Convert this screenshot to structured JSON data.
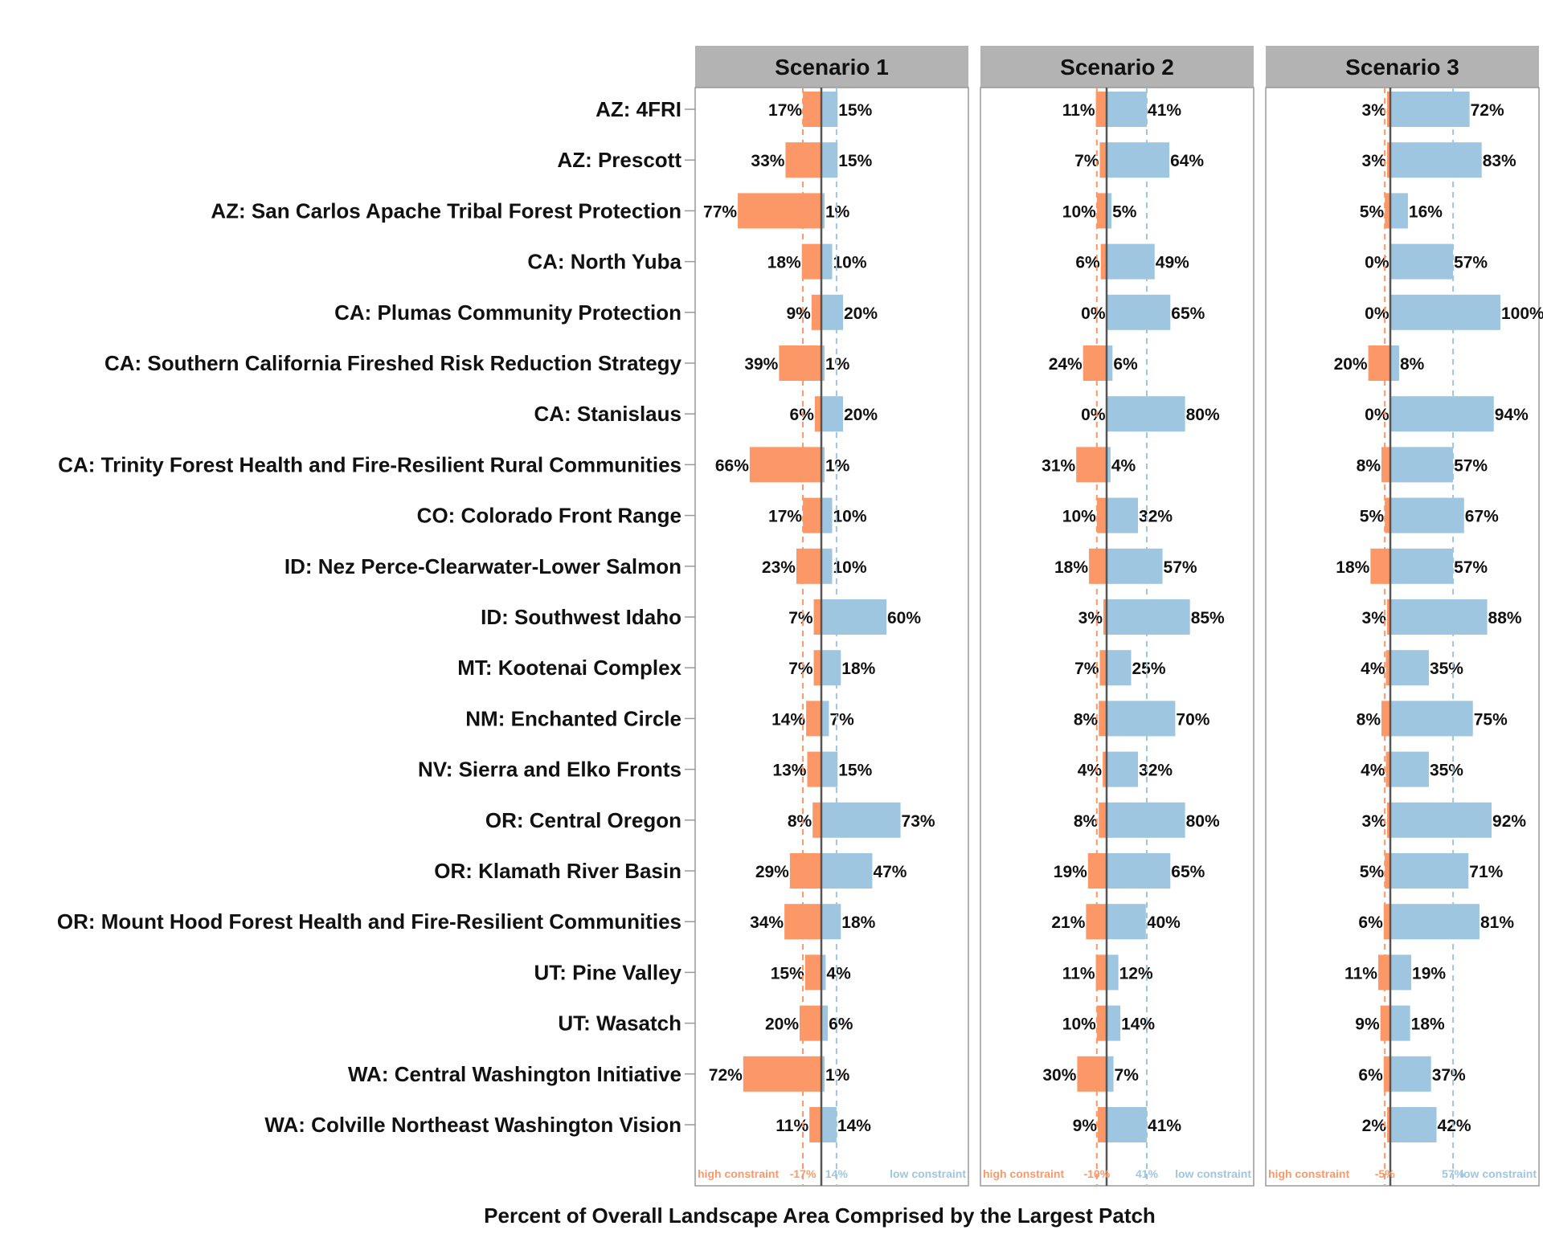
{
  "chart_data": {
    "type": "bar",
    "xlabel": "Percent of Overall Landscape Area Comprised by the Largest Patch",
    "colors": {
      "high": "#fc9867",
      "low": "#9fc6e1",
      "axis": "#555555",
      "panel_border": "#999999",
      "strip": "#b3b3b3"
    },
    "categories": [
      "AZ: 4FRI",
      "AZ: Prescott",
      "AZ: San Carlos Apache Tribal Forest Protection",
      "CA: North Yuba",
      "CA: Plumas Community Protection",
      "CA: Southern California Fireshed Risk Reduction Strategy",
      "CA: Stanislaus",
      "CA: Trinity Forest Health and Fire-Resilient Rural Communities",
      "CO: Colorado Front Range",
      "ID: Nez Perce-Clearwater-Lower Salmon",
      "ID: Southwest Idaho",
      "MT: Kootenai Complex",
      "NM: Enchanted Circle",
      "NV: Sierra and Elko Fronts",
      "OR: Central Oregon",
      "OR: Klamath River Basin",
      "OR: Mount Hood Forest Health and Fire-Resilient Communities",
      "UT: Pine Valley",
      "UT: Wasatch",
      "WA: Central Washington Initiative",
      "WA: Colville Northeast Washington Vision"
    ],
    "panels": [
      {
        "title": "Scenario 1",
        "high_constraint": [
          17,
          33,
          77,
          18,
          9,
          39,
          6,
          66,
          17,
          23,
          7,
          7,
          14,
          13,
          8,
          29,
          34,
          15,
          20,
          72,
          11
        ],
        "low_constraint": [
          15,
          15,
          1,
          10,
          20,
          1,
          20,
          1,
          10,
          10,
          60,
          18,
          7,
          15,
          73,
          47,
          18,
          4,
          6,
          1,
          14
        ],
        "high_labels": [
          "17%",
          "33%",
          "77%",
          "18%",
          "9%",
          "39%",
          "6%",
          "66%",
          "17%",
          "23%",
          "7%",
          "7%",
          "14%",
          "13%",
          "8%",
          "29%",
          "34%",
          "15%",
          "20%",
          "72%",
          "11%"
        ],
        "low_labels": [
          "15%",
          "15%",
          "1%",
          "10%",
          "20%",
          "1%",
          "20%",
          "1%",
          "10%",
          "10%",
          "60%",
          "18%",
          "7%",
          "15%",
          "73%",
          "47%",
          "18%",
          "4%",
          "6%",
          "1%",
          "14%"
        ],
        "high_ref": 17,
        "low_ref": 14,
        "high_ref_label": "-17%",
        "low_ref_label": "14%"
      },
      {
        "title": "Scenario 2",
        "high_constraint": [
          11,
          7,
          10,
          6,
          0,
          24,
          0,
          31,
          10,
          18,
          3,
          7,
          8,
          4,
          8,
          19,
          21,
          11,
          10,
          30,
          9
        ],
        "low_constraint": [
          41,
          64,
          5,
          49,
          65,
          6,
          80,
          4,
          32,
          57,
          85,
          25,
          70,
          32,
          80,
          65,
          40,
          12,
          14,
          7,
          41
        ],
        "high_labels": [
          "11%",
          "7%",
          "10%",
          "6%",
          "0%",
          "24%",
          "0%",
          "31%",
          "10%",
          "18%",
          "3%",
          "7%",
          "8%",
          "4%",
          "8%",
          "19%",
          "21%",
          "11%",
          "10%",
          "30%",
          "9%"
        ],
        "low_labels": [
          "41%",
          "64%",
          "5%",
          "49%",
          "65%",
          "6%",
          "80%",
          "4%",
          "32%",
          "57%",
          "85%",
          "25%",
          "70%",
          "32%",
          "80%",
          "65%",
          "40%",
          "12%",
          "14%",
          "7%",
          "41%"
        ],
        "high_ref": 10,
        "low_ref": 41,
        "high_ref_label": "-10%",
        "low_ref_label": "41%"
      },
      {
        "title": "Scenario 3",
        "high_constraint": [
          3,
          3,
          5,
          0,
          0,
          20,
          0,
          8,
          5,
          18,
          3,
          4,
          8,
          4,
          3,
          5,
          6,
          11,
          9,
          6,
          2
        ],
        "low_constraint": [
          72,
          83,
          16,
          57,
          100,
          8,
          94,
          57,
          67,
          57,
          88,
          35,
          75,
          35,
          92,
          71,
          81,
          19,
          18,
          37,
          42
        ],
        "high_labels": [
          "3%",
          "3%",
          "5%",
          "0%",
          "0%",
          "20%",
          "0%",
          "8%",
          "5%",
          "18%",
          "3%",
          "4%",
          "8%",
          "4%",
          "3%",
          "5%",
          "6%",
          "11%",
          "9%",
          "6%",
          "2%"
        ],
        "low_labels": [
          "72%",
          "83%",
          "16%",
          "57%",
          "100%",
          "8%",
          "94%",
          "57%",
          "67%",
          "57%",
          "88%",
          "35%",
          "75%",
          "35%",
          "92%",
          "71%",
          "81%",
          "19%",
          "18%",
          "37%",
          "42%"
        ],
        "high_ref": 5,
        "low_ref": 57,
        "high_ref_label": "-5%",
        "low_ref_label": "57%"
      }
    ],
    "footer_left": "high constraint",
    "footer_right": "low constraint"
  }
}
